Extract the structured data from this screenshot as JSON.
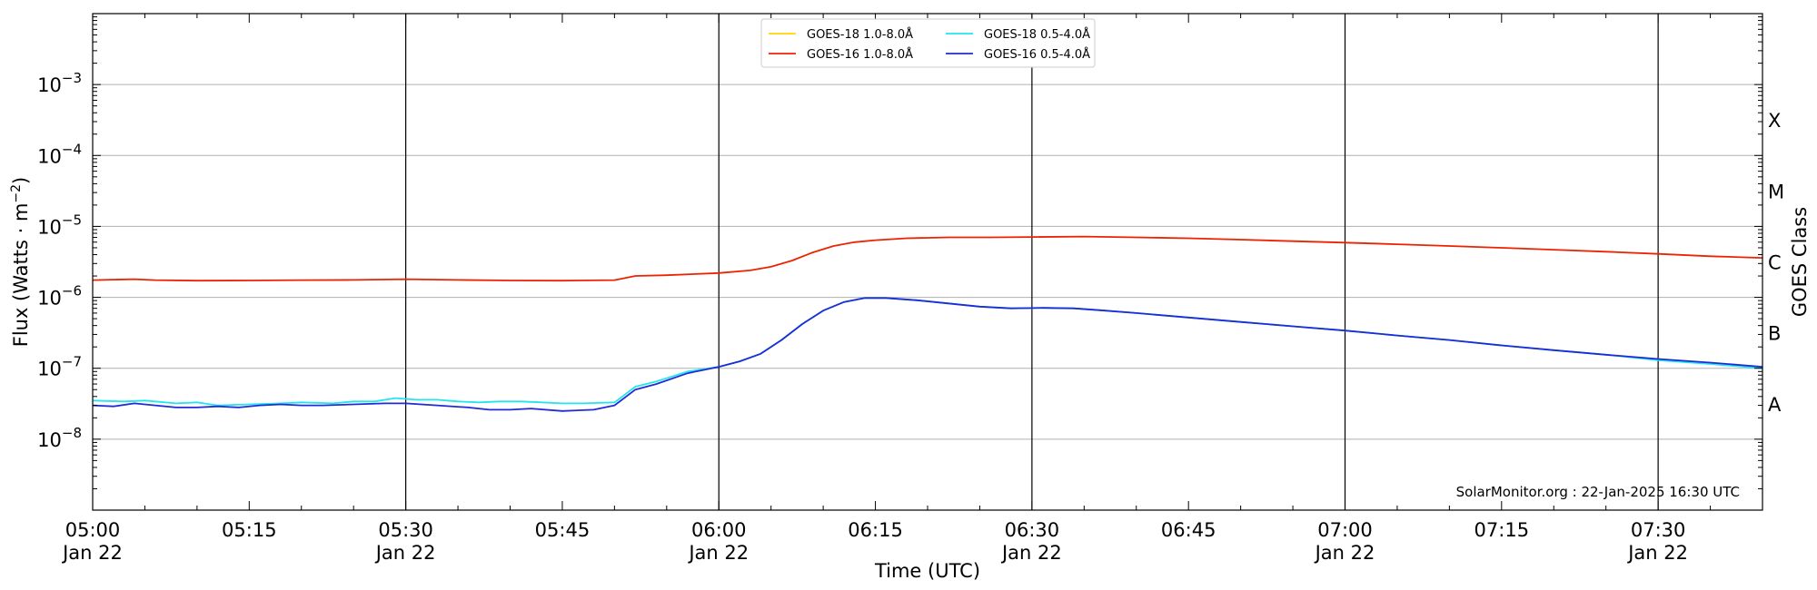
{
  "chart_data": {
    "type": "line",
    "xlabel": "Time (UTC)",
    "ylabel": "Flux (Watts · m",
    "ylabel_sup": "−2",
    "ylabel_close": ")",
    "y2label": "GOES Class",
    "yscale": "log",
    "xlim": [
      "05:00",
      "07:40"
    ],
    "ylim": [
      1e-09,
      0.01
    ],
    "grid": "horizontal at decades",
    "legend_position": "top-center",
    "credit": "SolarMonitor.org : 22-Jan-2025 16:30 UTC",
    "x_ticks": [
      {
        "time": "05:00",
        "label": "05:00",
        "date": "Jan 22",
        "major": true
      },
      {
        "time": "05:15",
        "label": "05:15",
        "date": "",
        "major": false
      },
      {
        "time": "05:30",
        "label": "05:30",
        "date": "Jan 22",
        "major": true
      },
      {
        "time": "05:45",
        "label": "05:45",
        "date": "",
        "major": false
      },
      {
        "time": "06:00",
        "label": "06:00",
        "date": "Jan 22",
        "major": true
      },
      {
        "time": "06:15",
        "label": "06:15",
        "date": "",
        "major": false
      },
      {
        "time": "06:30",
        "label": "06:30",
        "date": "Jan 22",
        "major": true
      },
      {
        "time": "06:45",
        "label": "06:45",
        "date": "",
        "major": false
      },
      {
        "time": "07:00",
        "label": "07:00",
        "date": "Jan 22",
        "major": true
      },
      {
        "time": "07:15",
        "label": "07:15",
        "date": "",
        "major": false
      },
      {
        "time": "07:30",
        "label": "07:30",
        "date": "Jan 22",
        "major": true
      }
    ],
    "y_ticks": [
      {
        "exp": -8,
        "label": "10",
        "sup": "−8"
      },
      {
        "exp": -7,
        "label": "10",
        "sup": "−7"
      },
      {
        "exp": -6,
        "label": "10",
        "sup": "−6"
      },
      {
        "exp": -5,
        "label": "10",
        "sup": "−5"
      },
      {
        "exp": -4,
        "label": "10",
        "sup": "−4"
      },
      {
        "exp": -3,
        "label": "10",
        "sup": "−3"
      }
    ],
    "goes_classes": [
      {
        "label": "A",
        "exp": -7.5
      },
      {
        "label": "B",
        "exp": -6.5
      },
      {
        "label": "C",
        "exp": -5.5
      },
      {
        "label": "M",
        "exp": -4.5
      },
      {
        "label": "X",
        "exp": -3.5
      }
    ],
    "series": [
      {
        "name": "GOES-18 1.0-8.0Å",
        "color": "#ffd700",
        "points": []
      },
      {
        "name": "GOES-16 1.0-8.0Å",
        "color": "#ee2200",
        "points": [
          [
            "05:00",
            1.75e-06
          ],
          [
            "05:04",
            1.8e-06
          ],
          [
            "05:06",
            1.75e-06
          ],
          [
            "05:10",
            1.72e-06
          ],
          [
            "05:15",
            1.73e-06
          ],
          [
            "05:20",
            1.75e-06
          ],
          [
            "05:25",
            1.76e-06
          ],
          [
            "05:30",
            1.8e-06
          ],
          [
            "05:35",
            1.76e-06
          ],
          [
            "05:40",
            1.73e-06
          ],
          [
            "05:45",
            1.72e-06
          ],
          [
            "05:50",
            1.75e-06
          ],
          [
            "05:52",
            2e-06
          ],
          [
            "05:55",
            2.05e-06
          ],
          [
            "06:00",
            2.2e-06
          ],
          [
            "06:03",
            2.4e-06
          ],
          [
            "06:05",
            2.7e-06
          ],
          [
            "06:07",
            3.3e-06
          ],
          [
            "06:09",
            4.3e-06
          ],
          [
            "06:11",
            5.3e-06
          ],
          [
            "06:13",
            6e-06
          ],
          [
            "06:15",
            6.4e-06
          ],
          [
            "06:18",
            6.8e-06
          ],
          [
            "06:22",
            7e-06
          ],
          [
            "06:26",
            7e-06
          ],
          [
            "06:30",
            7.1e-06
          ],
          [
            "06:35",
            7.2e-06
          ],
          [
            "06:40",
            7e-06
          ],
          [
            "06:45",
            6.8e-06
          ],
          [
            "06:50",
            6.5e-06
          ],
          [
            "06:55",
            6.2e-06
          ],
          [
            "07:00",
            5.9e-06
          ],
          [
            "07:05",
            5.6e-06
          ],
          [
            "07:10",
            5.3e-06
          ],
          [
            "07:15",
            5e-06
          ],
          [
            "07:20",
            4.7e-06
          ],
          [
            "07:25",
            4.4e-06
          ],
          [
            "07:30",
            4.1e-06
          ],
          [
            "07:35",
            3.8e-06
          ],
          [
            "07:40",
            3.6e-06
          ]
        ]
      },
      {
        "name": "GOES-18 0.5-4.0Å",
        "color": "#22e5ee",
        "points": [
          [
            "05:00",
            3.5e-08
          ],
          [
            "05:03",
            3.4e-08
          ],
          [
            "05:05",
            3.5e-08
          ],
          [
            "05:08",
            3.2e-08
          ],
          [
            "05:10",
            3.3e-08
          ],
          [
            "05:12",
            3e-08
          ],
          [
            "05:15",
            3.1e-08
          ],
          [
            "05:18",
            3.2e-08
          ],
          [
            "05:20",
            3.3e-08
          ],
          [
            "05:23",
            3.2e-08
          ],
          [
            "05:25",
            3.4e-08
          ],
          [
            "05:27",
            3.4e-08
          ],
          [
            "05:29",
            3.8e-08
          ],
          [
            "05:31",
            3.6e-08
          ],
          [
            "05:33",
            3.6e-08
          ],
          [
            "05:35",
            3.4e-08
          ],
          [
            "05:37",
            3.3e-08
          ],
          [
            "05:39",
            3.4e-08
          ],
          [
            "05:41",
            3.4e-08
          ],
          [
            "05:43",
            3.3e-08
          ],
          [
            "05:45",
            3.2e-08
          ],
          [
            "05:47",
            3.2e-08
          ],
          [
            "05:50",
            3.3e-08
          ],
          [
            "05:52",
            5.5e-08
          ],
          [
            "05:54",
            6.5e-08
          ],
          [
            "05:57",
            9e-08
          ],
          [
            "06:00",
            1.05e-07
          ],
          [
            "06:02",
            1.25e-07
          ],
          [
            "06:04",
            1.6e-07
          ],
          [
            "06:06",
            2.5e-07
          ],
          [
            "06:08",
            4.2e-07
          ],
          [
            "06:10",
            6.5e-07
          ],
          [
            "06:12",
            8.6e-07
          ],
          [
            "06:14",
            9.8e-07
          ],
          [
            "06:16",
            9.8e-07
          ],
          [
            "06:19",
            9.1e-07
          ],
          [
            "06:22",
            8.2e-07
          ],
          [
            "06:25",
            7.4e-07
          ],
          [
            "06:28",
            7e-07
          ],
          [
            "06:31",
            7.1e-07
          ],
          [
            "06:34",
            7e-07
          ],
          [
            "06:37",
            6.5e-07
          ],
          [
            "06:40",
            6e-07
          ],
          [
            "06:45",
            5.2e-07
          ],
          [
            "06:50",
            4.5e-07
          ],
          [
            "06:55",
            3.9e-07
          ],
          [
            "07:00",
            3.4e-07
          ],
          [
            "07:05",
            2.9e-07
          ],
          [
            "07:10",
            2.5e-07
          ],
          [
            "07:15",
            2.1e-07
          ],
          [
            "07:20",
            1.8e-07
          ],
          [
            "07:25",
            1.55e-07
          ],
          [
            "07:30",
            1.3e-07
          ],
          [
            "07:35",
            1.15e-07
          ],
          [
            "07:40",
            1e-07
          ]
        ]
      },
      {
        "name": "GOES-16 0.5-4.0Å",
        "color": "#1f2bd6",
        "points": [
          [
            "05:00",
            3e-08
          ],
          [
            "05:02",
            2.9e-08
          ],
          [
            "05:04",
            3.2e-08
          ],
          [
            "05:06",
            3e-08
          ],
          [
            "05:08",
            2.8e-08
          ],
          [
            "05:10",
            2.8e-08
          ],
          [
            "05:12",
            2.9e-08
          ],
          [
            "05:14",
            2.8e-08
          ],
          [
            "05:16",
            3e-08
          ],
          [
            "05:18",
            3.1e-08
          ],
          [
            "05:20",
            3e-08
          ],
          [
            "05:22",
            3e-08
          ],
          [
            "05:25",
            3.1e-08
          ],
          [
            "05:28",
            3.2e-08
          ],
          [
            "05:30",
            3.2e-08
          ],
          [
            "05:33",
            3e-08
          ],
          [
            "05:36",
            2.8e-08
          ],
          [
            "05:38",
            2.6e-08
          ],
          [
            "05:40",
            2.6e-08
          ],
          [
            "05:42",
            2.7e-08
          ],
          [
            "05:45",
            2.5e-08
          ],
          [
            "05:48",
            2.6e-08
          ],
          [
            "05:50",
            3e-08
          ],
          [
            "05:52",
            5e-08
          ],
          [
            "05:54",
            6e-08
          ],
          [
            "05:57",
            8.5e-08
          ],
          [
            "06:00",
            1.05e-07
          ],
          [
            "06:02",
            1.25e-07
          ],
          [
            "06:04",
            1.6e-07
          ],
          [
            "06:06",
            2.5e-07
          ],
          [
            "06:08",
            4.2e-07
          ],
          [
            "06:10",
            6.5e-07
          ],
          [
            "06:12",
            8.6e-07
          ],
          [
            "06:14",
            9.8e-07
          ],
          [
            "06:16",
            9.8e-07
          ],
          [
            "06:19",
            9.1e-07
          ],
          [
            "06:22",
            8.2e-07
          ],
          [
            "06:25",
            7.4e-07
          ],
          [
            "06:28",
            7e-07
          ],
          [
            "06:31",
            7.1e-07
          ],
          [
            "06:34",
            7e-07
          ],
          [
            "06:37",
            6.5e-07
          ],
          [
            "06:40",
            6e-07
          ],
          [
            "06:45",
            5.2e-07
          ],
          [
            "06:50",
            4.5e-07
          ],
          [
            "06:55",
            3.9e-07
          ],
          [
            "07:00",
            3.4e-07
          ],
          [
            "07:05",
            2.9e-07
          ],
          [
            "07:10",
            2.5e-07
          ],
          [
            "07:15",
            2.1e-07
          ],
          [
            "07:20",
            1.8e-07
          ],
          [
            "07:25",
            1.55e-07
          ],
          [
            "07:30",
            1.35e-07
          ],
          [
            "07:35",
            1.2e-07
          ],
          [
            "07:40",
            1.05e-07
          ]
        ]
      }
    ]
  }
}
